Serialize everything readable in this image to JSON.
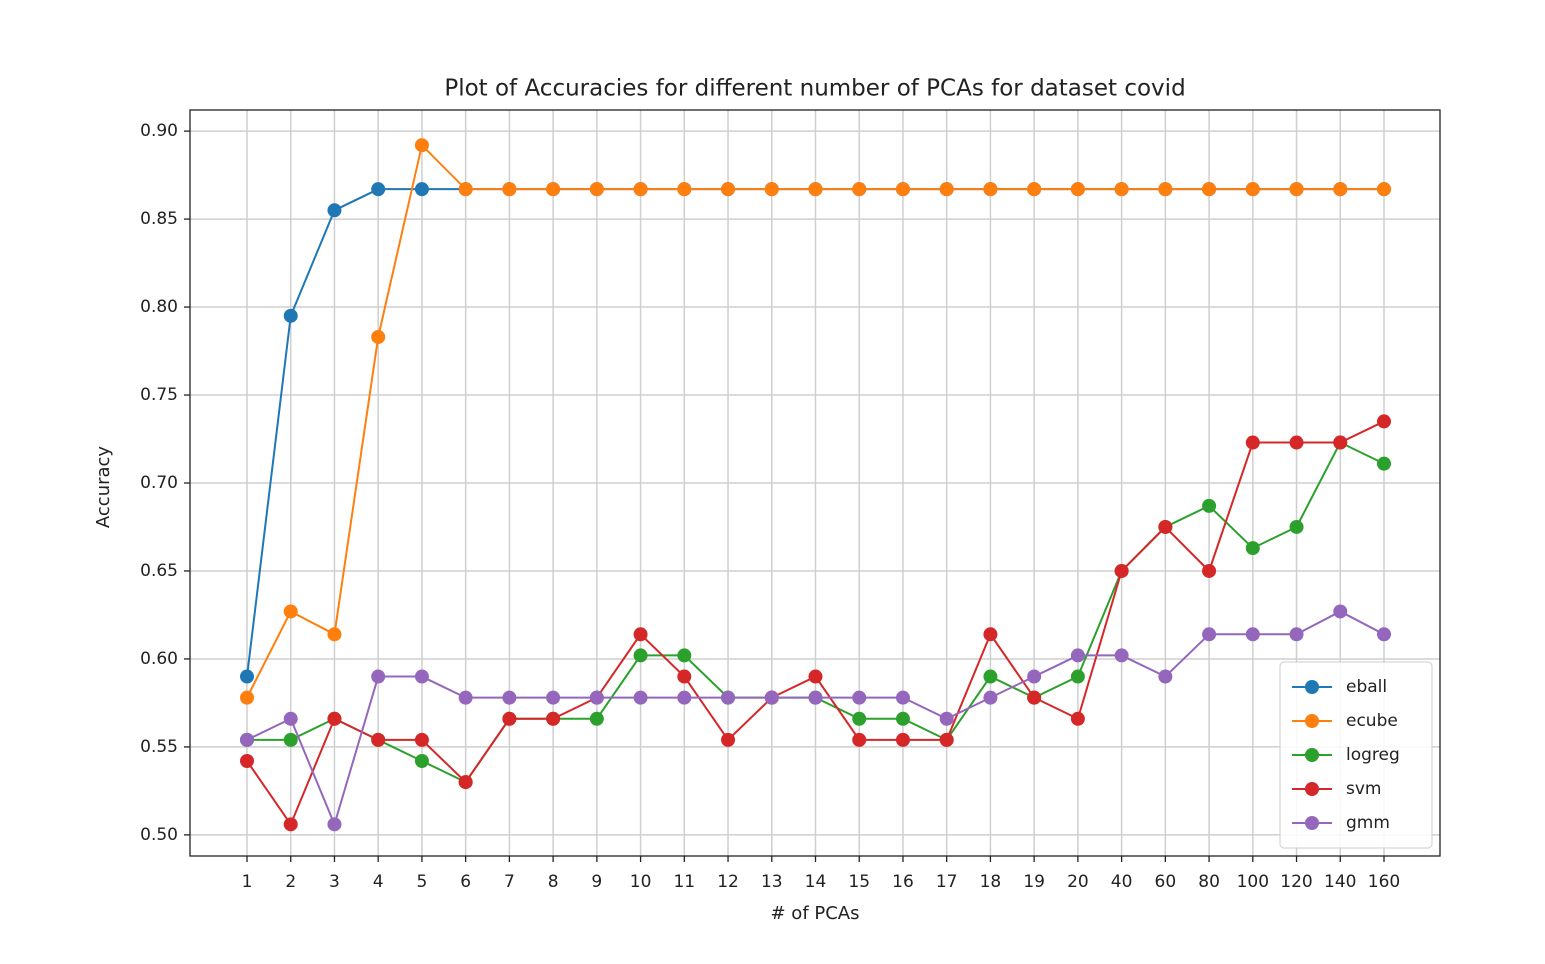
{
  "chart_data": {
    "type": "line",
    "title": "Plot of Accuracies for different number of PCAs for dataset covid",
    "xlabel": "# of PCAs",
    "ylabel": "Accuracy",
    "categories": [
      "1",
      "2",
      "3",
      "4",
      "5",
      "6",
      "7",
      "8",
      "9",
      "10",
      "11",
      "12",
      "13",
      "14",
      "15",
      "16",
      "17",
      "18",
      "19",
      "20",
      "40",
      "60",
      "80",
      "100",
      "120",
      "140",
      "160"
    ],
    "series": [
      {
        "name": "eball",
        "color": "#1f77b4",
        "values": [
          0.59,
          0.795,
          0.855,
          0.867,
          0.867,
          0.867,
          0.867,
          0.867,
          0.867,
          0.867,
          0.867,
          0.867,
          0.867,
          0.867,
          0.867,
          0.867,
          0.867,
          0.867,
          0.867,
          0.867,
          0.867,
          0.867,
          0.867,
          0.867,
          0.867,
          0.867,
          0.867
        ]
      },
      {
        "name": "ecube",
        "color": "#ff7f0e",
        "values": [
          0.578,
          0.627,
          0.614,
          0.783,
          0.892,
          0.867,
          0.867,
          0.867,
          0.867,
          0.867,
          0.867,
          0.867,
          0.867,
          0.867,
          0.867,
          0.867,
          0.867,
          0.867,
          0.867,
          0.867,
          0.867,
          0.867,
          0.867,
          0.867,
          0.867,
          0.867,
          0.867
        ]
      },
      {
        "name": "logreg",
        "color": "#2ca02c",
        "values": [
          0.554,
          0.554,
          0.566,
          0.554,
          0.542,
          0.53,
          0.566,
          0.566,
          0.566,
          0.602,
          0.602,
          0.578,
          0.578,
          0.578,
          0.566,
          0.566,
          0.554,
          0.59,
          0.578,
          0.59,
          0.65,
          0.675,
          0.687,
          0.663,
          0.675,
          0.723,
          0.711
        ]
      },
      {
        "name": "svm",
        "color": "#d62728",
        "values": [
          0.542,
          0.506,
          0.566,
          0.554,
          0.554,
          0.53,
          0.566,
          0.566,
          0.578,
          0.614,
          0.59,
          0.554,
          0.578,
          0.59,
          0.554,
          0.554,
          0.554,
          0.614,
          0.578,
          0.566,
          0.65,
          0.675,
          0.65,
          0.723,
          0.723,
          0.723,
          0.735
        ]
      },
      {
        "name": "gmm",
        "color": "#9467bd",
        "values": [
          0.554,
          0.566,
          0.506,
          0.59,
          0.59,
          0.578,
          0.578,
          0.578,
          0.578,
          0.578,
          0.578,
          0.578,
          0.578,
          0.578,
          0.578,
          0.578,
          0.566,
          0.578,
          0.59,
          0.602,
          0.602,
          0.59,
          0.614,
          0.614,
          0.614,
          0.627,
          0.614
        ]
      }
    ],
    "ylim": [
      0.488,
      0.912
    ],
    "yticks": [
      {
        "value": 0.5,
        "label": "0.50"
      },
      {
        "value": 0.55,
        "label": "0.55"
      },
      {
        "value": 0.6,
        "label": "0.60"
      },
      {
        "value": 0.65,
        "label": "0.65"
      },
      {
        "value": 0.7,
        "label": "0.70"
      },
      {
        "value": 0.75,
        "label": "0.75"
      },
      {
        "value": 0.8,
        "label": "0.80"
      },
      {
        "value": 0.85,
        "label": "0.85"
      },
      {
        "value": 0.9,
        "label": "0.90"
      }
    ],
    "grid": true,
    "legend": "lower right"
  }
}
